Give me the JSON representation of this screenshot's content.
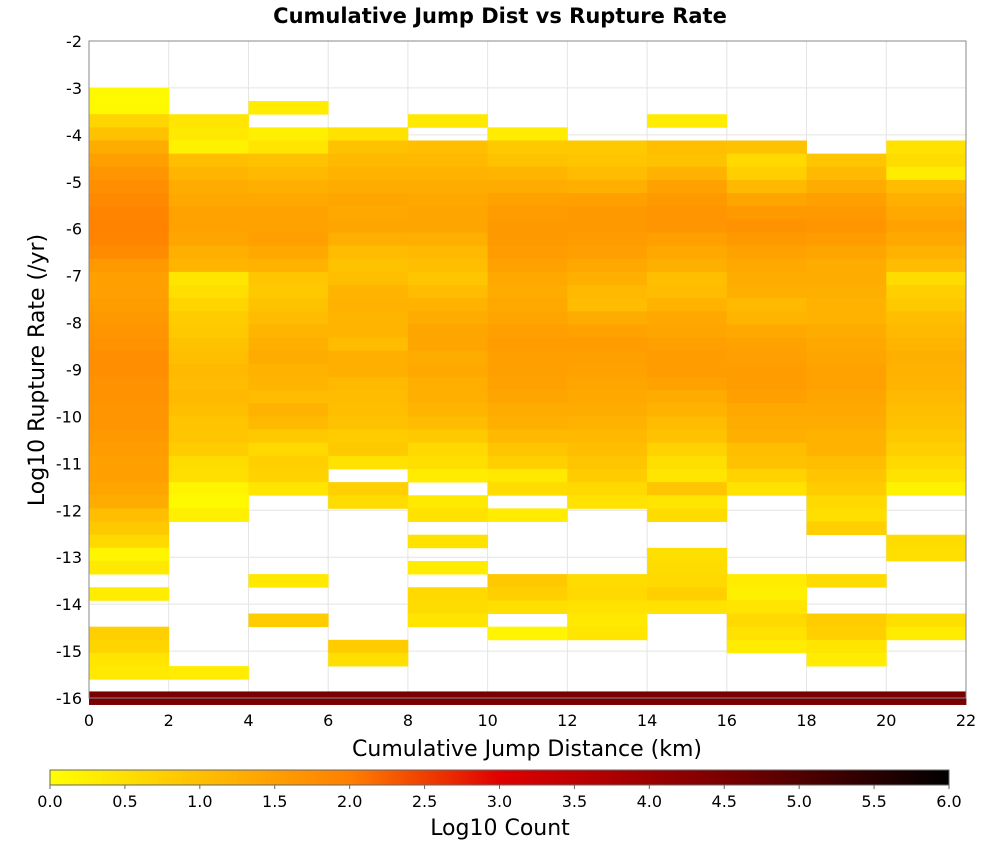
{
  "chart_data": {
    "type": "heatmap",
    "title": "Cumulative Jump Dist vs Rupture Rate",
    "xlabel": "Cumulative Jump Distance (km)",
    "ylabel": "Log10 Rupture Rate (/yr)",
    "xlim": [
      0,
      22
    ],
    "ylim": [
      -16,
      -2
    ],
    "x_ticks": [
      "0",
      "2",
      "4",
      "6",
      "8",
      "10",
      "12",
      "14",
      "16",
      "18",
      "20",
      "22"
    ],
    "y_ticks": [
      "-2",
      "-3",
      "-4",
      "-5",
      "-6",
      "-7",
      "-8",
      "-9",
      "-10",
      "-11",
      "-12",
      "-13",
      "-14",
      "-15",
      "-16"
    ],
    "x_bin_width": 2,
    "y_bin_height": 0.28,
    "grid": true,
    "colorbar": {
      "label": "Log10 Count",
      "min": 0.0,
      "max": 6.0,
      "ticks": [
        "0.0",
        "0.5",
        "1.0",
        "1.5",
        "2.0",
        "2.5",
        "3.0",
        "3.5",
        "4.0",
        "4.5",
        "5.0",
        "5.5",
        "6.0"
      ],
      "stops": [
        {
          "v": 0.0,
          "color": "#ffff00"
        },
        {
          "v": 2.0,
          "color": "#ff7f00"
        },
        {
          "v": 3.0,
          "color": "#e00000"
        },
        {
          "v": 4.5,
          "color": "#7a0000"
        },
        {
          "v": 6.0,
          "color": "#000000"
        }
      ]
    },
    "cells": [
      {
        "x0": 0,
        "y_top": -3.0,
        "values": [
          0.1,
          0.1,
          0.65,
          0.95,
          1.3,
          1.5,
          1.65,
          1.75,
          1.85,
          1.9,
          1.95,
          1.9,
          1.8,
          1.6,
          1.5,
          1.5,
          1.55,
          1.6,
          1.65,
          1.7,
          1.75,
          1.75,
          1.7,
          1.7,
          1.65,
          1.65,
          1.6,
          1.55,
          1.5,
          1.5,
          1.4,
          1.3,
          1.0,
          0.85,
          0.6,
          0.15,
          0.35,
          null,
          0.3,
          null,
          null,
          0.75,
          0.65,
          0.4,
          0.35
        ]
      },
      {
        "x0": 2,
        "y_top": -3.56,
        "values": [
          0.4,
          0.35,
          0.2,
          1.0,
          1.15,
          1.3,
          1.35,
          1.45,
          1.45,
          1.4,
          1.25,
          1.15,
          0.4,
          0.5,
          0.65,
          0.8,
          0.85,
          0.95,
          1.0,
          1.1,
          1.05,
          1.1,
          1.0,
          0.9,
          0.9,
          0.8,
          0.55,
          0.5,
          0.15,
          0.1,
          0.25,
          null,
          null,
          null,
          null,
          null,
          null,
          null,
          null,
          null,
          null,
          null,
          0.3,
          null,
          null
        ]
      },
      {
        "x0": 4,
        "y_top": -3.28,
        "values": [
          0.3,
          null,
          0.25,
          0.4,
          0.95,
          1.1,
          1.25,
          1.35,
          1.45,
          1.45,
          1.5,
          1.35,
          1.2,
          0.9,
          0.85,
          0.95,
          1.05,
          1.15,
          1.25,
          1.3,
          1.2,
          1.15,
          1.05,
          1.2,
          1.1,
          0.85,
          0.6,
          0.75,
          0.7,
          0.4,
          null,
          null,
          null,
          null,
          null,
          null,
          0.35,
          null,
          null,
          0.8,
          null,
          null,
          null,
          null,
          null
        ]
      },
      {
        "x0": 6,
        "y_top": -3.84,
        "values": [
          0.45,
          0.95,
          1.1,
          1.2,
          1.3,
          1.4,
          1.35,
          1.4,
          1.25,
          1.05,
          0.95,
          1.0,
          1.15,
          1.2,
          1.15,
          1.15,
          1.05,
          1.25,
          1.25,
          1.1,
          1.05,
          1.0,
          0.95,
          0.8,
          0.85,
          0.45,
          null,
          0.75,
          0.55,
          null,
          null,
          null,
          null,
          null,
          null,
          null,
          null,
          null,
          null,
          0.8,
          0.5,
          null,
          null,
          null,
          null
        ]
      },
      {
        "x0": 8,
        "y_top": -3.56,
        "values": [
          0.35,
          null,
          1.0,
          1.1,
          1.2,
          1.3,
          1.35,
          1.4,
          1.4,
          1.25,
          1.1,
          1.0,
          0.9,
          1.05,
          1.2,
          1.3,
          1.4,
          1.4,
          1.3,
          1.35,
          1.25,
          1.25,
          1.15,
          1.05,
          0.85,
          0.6,
          0.5,
          0.3,
          null,
          0.35,
          0.45,
          null,
          0.45,
          null,
          0.3,
          null,
          0.6,
          0.55,
          0.4,
          null,
          null
        ]
      },
      {
        "x0": 10,
        "y_top": -3.84,
        "values": [
          0.3,
          0.85,
          0.95,
          1.15,
          1.3,
          1.45,
          1.55,
          1.6,
          1.6,
          1.55,
          1.45,
          1.35,
          1.3,
          1.35,
          1.4,
          1.5,
          1.55,
          1.5,
          1.5,
          1.45,
          1.4,
          1.3,
          1.25,
          1.1,
          0.9,
          0.75,
          0.35,
          0.55,
          null,
          0.3,
          null,
          null,
          null,
          null,
          0.85,
          0.75,
          0.5,
          null,
          0.15
        ]
      },
      {
        "x0": 12,
        "y_top": -4.12,
        "values": [
          0.85,
          0.9,
          1.05,
          1.25,
          1.5,
          1.6,
          1.6,
          1.55,
          1.5,
          1.35,
          1.25,
          1.1,
          1.05,
          1.3,
          1.45,
          1.55,
          1.5,
          1.45,
          1.4,
          1.35,
          1.3,
          1.2,
          1.1,
          1.0,
          0.9,
          0.8,
          0.6,
          0.45,
          null,
          null,
          null,
          null,
          null,
          0.55,
          0.6,
          0.45,
          0.35,
          0.4
        ]
      },
      {
        "x0": 14,
        "y_top": -3.56,
        "values": [
          0.3,
          null,
          1.0,
          0.95,
          1.2,
          1.45,
          1.6,
          1.65,
          1.65,
          1.5,
          1.35,
          1.25,
          1.0,
          1.05,
          1.2,
          1.35,
          1.4,
          1.5,
          1.55,
          1.55,
          1.45,
          1.3,
          1.2,
          1.05,
          0.95,
          0.7,
          0.5,
          0.4,
          0.9,
          0.4,
          0.55,
          null,
          null,
          0.5,
          0.55,
          0.6,
          0.75,
          0.45
        ]
      },
      {
        "x0": 16,
        "y_top": -4.12,
        "values": [
          0.95,
          0.6,
          0.75,
          1.1,
          1.4,
          1.6,
          1.7,
          1.6,
          1.45,
          1.35,
          1.3,
          1.25,
          1.1,
          1.15,
          1.35,
          1.45,
          1.5,
          1.55,
          1.55,
          1.5,
          1.35,
          1.3,
          1.25,
          1.0,
          0.95,
          0.7,
          0.45,
          null,
          null,
          null,
          null,
          null,
          null,
          0.3,
          0.25,
          0.4,
          0.6,
          0.45,
          0.3
        ]
      },
      {
        "x0": 18,
        "y_top": -4.4,
        "values": [
          0.9,
          1.1,
          1.3,
          1.5,
          1.6,
          1.65,
          1.55,
          1.4,
          1.3,
          1.3,
          1.25,
          1.2,
          1.2,
          1.3,
          1.35,
          1.4,
          1.45,
          1.45,
          1.4,
          1.35,
          1.3,
          1.2,
          1.2,
          1.0,
          0.9,
          0.8,
          0.6,
          0.5,
          0.75,
          null,
          null,
          null,
          0.55,
          null,
          null,
          0.8,
          0.75,
          0.4,
          0.3
        ]
      },
      {
        "x0": 20,
        "y_top": -4.12,
        "values": [
          0.45,
          0.55,
          0.3,
          1.05,
          1.25,
          1.35,
          1.45,
          1.35,
          1.2,
          1.05,
          0.55,
          0.75,
          0.85,
          1.0,
          1.1,
          1.15,
          1.25,
          1.2,
          1.15,
          1.1,
          1.0,
          0.95,
          0.85,
          0.75,
          0.6,
          0.45,
          0.2,
          null,
          null,
          null,
          0.55,
          0.5,
          null,
          null,
          null,
          null,
          0.5,
          0.3
        ]
      },
      {
        "x0": 0,
        "y_top": -15.86,
        "span": 11,
        "values": [
          4.5
        ]
      }
    ]
  }
}
